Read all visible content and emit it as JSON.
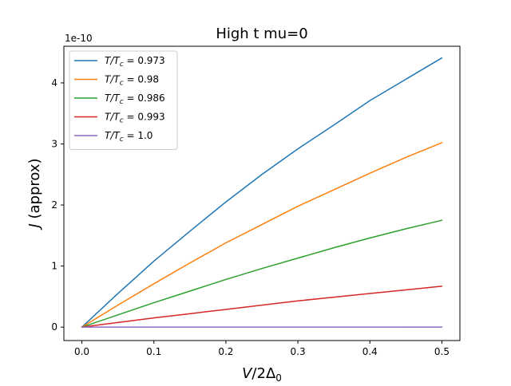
{
  "chart_data": {
    "type": "line",
    "title": "High t  mu=0",
    "xlabel": "V/2Δ₀",
    "ylabel": "J (approx)",
    "y_offset_text": "1e-10",
    "xlim": [
      -0.025,
      0.525
    ],
    "ylim": [
      -0.22,
      4.6
    ],
    "x_ticks": [
      0.0,
      0.1,
      0.2,
      0.3,
      0.4,
      0.5
    ],
    "x_tick_labels": [
      "0.0",
      "0.1",
      "0.2",
      "0.3",
      "0.4",
      "0.5"
    ],
    "y_ticks": [
      0,
      1,
      2,
      3,
      4
    ],
    "y_tick_labels": [
      "0",
      "1",
      "2",
      "3",
      "4"
    ],
    "grid": false,
    "legend_position": "upper-left",
    "x": [
      0.0,
      0.05,
      0.1,
      0.15,
      0.2,
      0.25,
      0.3,
      0.35,
      0.4,
      0.45,
      0.5
    ],
    "series": [
      {
        "name": "T/T_c = 0.973",
        "name_parts": [
          "T/T",
          "c",
          " = 0.973"
        ],
        "color": "#1f77b4",
        "values": [
          0.0,
          0.55,
          1.08,
          1.57,
          2.05,
          2.5,
          2.92,
          3.31,
          3.71,
          4.06,
          4.41
        ]
      },
      {
        "name": "T/T_c = 0.98",
        "name_parts": [
          "T/T",
          "c",
          " = 0.98"
        ],
        "color": "#ff7f0e",
        "values": [
          0.0,
          0.36,
          0.71,
          1.05,
          1.38,
          1.68,
          1.98,
          2.25,
          2.52,
          2.78,
          3.02
        ]
      },
      {
        "name": "T/T_c = 0.986",
        "name_parts": [
          "T/T",
          "c",
          " = 0.986"
        ],
        "color": "#2ca02c",
        "values": [
          0.0,
          0.2,
          0.4,
          0.59,
          0.78,
          0.96,
          1.13,
          1.3,
          1.46,
          1.61,
          1.75
        ]
      },
      {
        "name": "T/T_c = 0.993",
        "name_parts": [
          "T/T",
          "c",
          " = 0.993"
        ],
        "color": "#d62728",
        "values": [
          0.0,
          0.075,
          0.15,
          0.22,
          0.29,
          0.36,
          0.43,
          0.49,
          0.55,
          0.61,
          0.67
        ]
      },
      {
        "name": "T/T_c = 1.0",
        "name_parts": [
          "T/T",
          "c",
          " = 1.0"
        ],
        "color": "#9467bd",
        "values": [
          0.0,
          0.0,
          0.0,
          0.0,
          0.0,
          0.0,
          0.0,
          0.0,
          0.0,
          0.0,
          0.0
        ]
      }
    ]
  }
}
